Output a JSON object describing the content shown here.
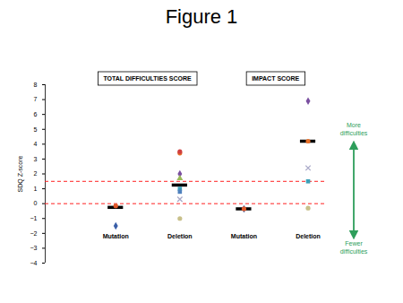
{
  "chart_data": {
    "type": "scatter",
    "title": "Figure 1",
    "ylabel": "SDQ Z-score",
    "panels": [
      {
        "title": "TOTAL DIFFICULTIES SCORE"
      },
      {
        "title": "IMPACT SCORE"
      }
    ],
    "categories": [
      "Mutation",
      "Deletion",
      "Mutation",
      "Deletion"
    ],
    "tick_labels": "y",
    "ylim": [
      -4,
      8
    ],
    "yticks": [
      -4,
      -3,
      -2,
      -1,
      0,
      1,
      2,
      3,
      4,
      5,
      6,
      7,
      8
    ],
    "series": [
      {
        "color": "#3a5fa8",
        "marker": "diamond",
        "values": [
          -1.5,
          null,
          -0.35,
          null
        ]
      },
      {
        "color": "#e05a2b",
        "marker": "circle",
        "values": [
          -0.15,
          null,
          -0.35,
          null
        ]
      },
      {
        "color": "#7a4fa0",
        "marker": "diamond",
        "values": [
          null,
          2.0,
          null,
          6.9
        ]
      },
      {
        "color": "#e8702a",
        "marker": "circle",
        "values": [
          null,
          3.4,
          null,
          4.2
        ]
      },
      {
        "color": "#a9a9c8",
        "marker": "times",
        "values": [
          null,
          0.3,
          null,
          2.4
        ]
      },
      {
        "color": "#3ca0b8",
        "marker": "square",
        "values": [
          null,
          1.0,
          null,
          1.5
        ]
      },
      {
        "color": "#c8c08a",
        "marker": "circle",
        "values": [
          null,
          -1.0,
          null,
          -0.3
        ]
      },
      {
        "color": "#d04040",
        "marker": "circle",
        "values": [
          null,
          3.5,
          null,
          null
        ]
      },
      {
        "color": "#4f81bd",
        "marker": "square",
        "values": [
          null,
          0.8,
          null,
          null
        ]
      },
      {
        "color": "#9bbb59",
        "marker": "triangle",
        "values": [
          null,
          1.7,
          null,
          null
        ]
      },
      {
        "color": "#000000",
        "marker": "bar",
        "values": [
          -0.25,
          1.25,
          -0.35,
          4.2
        ]
      }
    ],
    "reference_lines": [
      {
        "value": 1.5,
        "color": "#ff2020",
        "line_style": "dashed"
      },
      {
        "value": 0,
        "color": "#ff2020",
        "line_style": "dashed"
      }
    ],
    "annotations": [
      {
        "text": "More difficulties",
        "color": "#2e9e5b"
      },
      {
        "text": "Fewer difficulties",
        "color": "#2e9e5b"
      }
    ]
  }
}
